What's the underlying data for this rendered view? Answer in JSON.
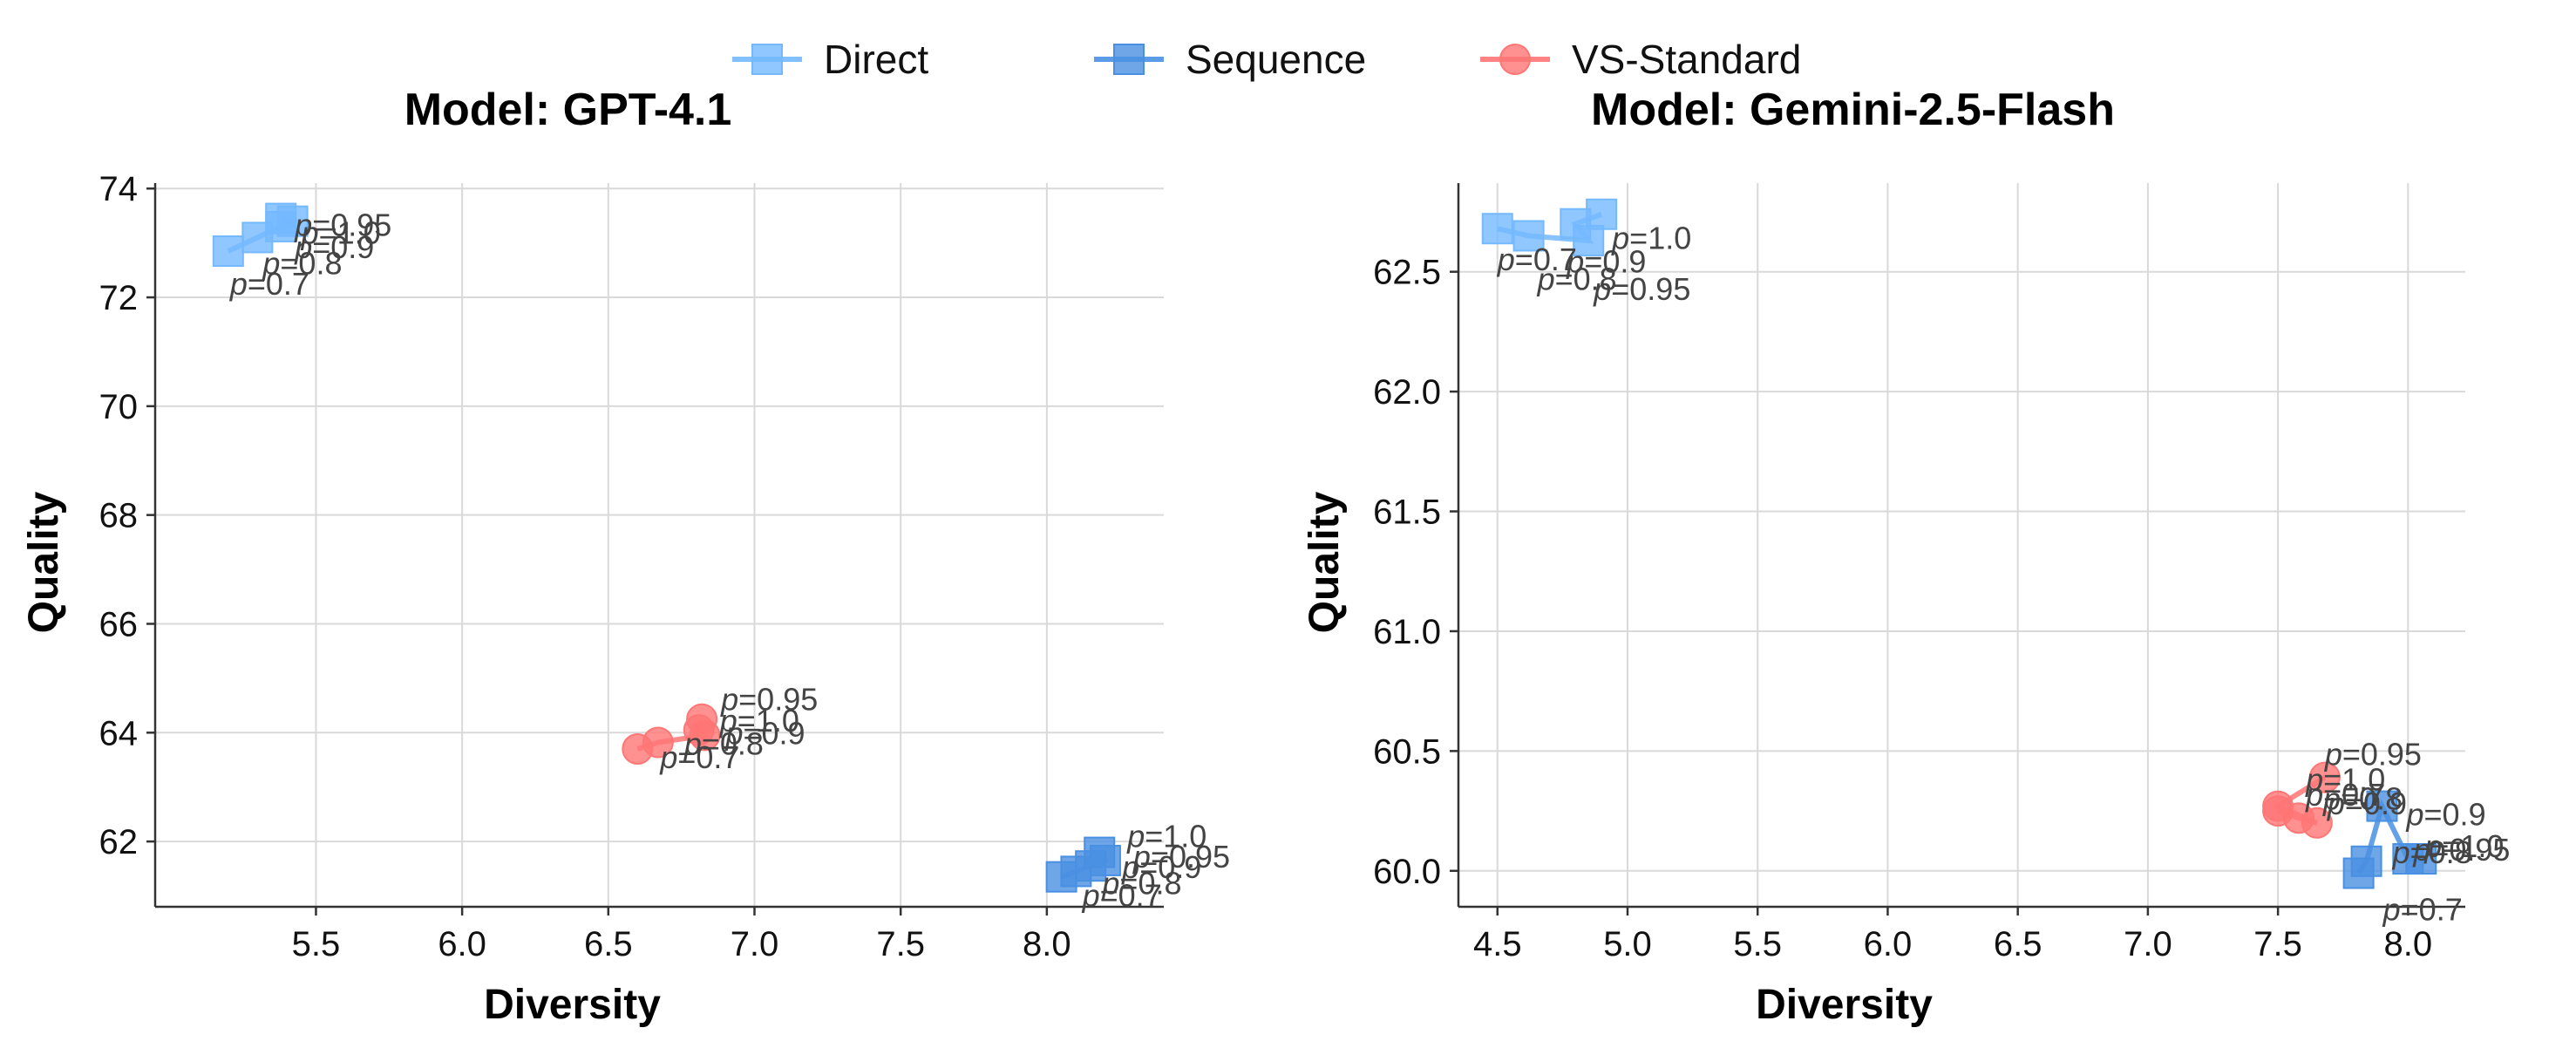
{
  "legend": [
    {
      "label": "Direct",
      "color": "#74b9ff",
      "marker": "square"
    },
    {
      "label": "Sequence",
      "color": "#4a90e2",
      "marker": "square"
    },
    {
      "label": "VS-Standard",
      "color": "#ff7675",
      "marker": "circle"
    }
  ],
  "chart_data": [
    {
      "type": "scatter",
      "title": "Model: GPT-4.1",
      "xlabel": "Diversity",
      "ylabel": "Quality",
      "xlim": [
        4.95,
        8.4
      ],
      "ylim": [
        60.8,
        74.1
      ],
      "xticks": [
        "5.5",
        "6.0",
        "6.5",
        "7.0",
        "7.5",
        "8.0"
      ],
      "yticks": [
        "62",
        "64",
        "66",
        "68",
        "70",
        "72",
        "74"
      ],
      "grid": true,
      "series": [
        {
          "name": "Direct",
          "color": "#74b9ff",
          "marker": "square",
          "points": [
            {
              "x": 5.2,
              "y": 72.85,
              "label": "p=0.7"
            },
            {
              "x": 5.3,
              "y": 73.1,
              "label": "p=0.8"
            },
            {
              "x": 5.38,
              "y": 73.3,
              "label": "p=0.9"
            },
            {
              "x": 5.42,
              "y": 73.4,
              "label": "p=1.0"
            },
            {
              "x": 5.38,
              "y": 73.45,
              "label": "p=0.95"
            }
          ]
        },
        {
          "name": "Sequence",
          "color": "#4a90e2",
          "marker": "square",
          "points": [
            {
              "x": 8.05,
              "y": 61.35,
              "label": "p=0.7"
            },
            {
              "x": 8.1,
              "y": 61.45,
              "label": "p=0.8"
            },
            {
              "x": 8.15,
              "y": 61.55,
              "label": "p=0.9"
            },
            {
              "x": 8.2,
              "y": 61.65,
              "label": "p=0.95"
            },
            {
              "x": 8.18,
              "y": 61.8,
              "label": "p=1.0"
            }
          ]
        },
        {
          "name": "VS-Standard",
          "color": "#ff7675",
          "marker": "circle",
          "points": [
            {
              "x": 6.6,
              "y": 63.7,
              "label": "p=0.7"
            },
            {
              "x": 6.67,
              "y": 63.82,
              "label": "p=0.8"
            },
            {
              "x": 6.83,
              "y": 63.95,
              "label": "p=0.9"
            },
            {
              "x": 6.81,
              "y": 64.05,
              "label": "p=1.0"
            },
            {
              "x": 6.82,
              "y": 64.25,
              "label": "p=0.95"
            }
          ]
        }
      ]
    },
    {
      "type": "scatter",
      "title": "Model: Gemini-2.5-Flash",
      "xlabel": "Diversity",
      "ylabel": "Quality",
      "xlim": [
        4.35,
        8.22
      ],
      "ylim": [
        59.85,
        62.87
      ],
      "xticks": [
        "4.5",
        "5.0",
        "5.5",
        "6.0",
        "6.5",
        "7.0",
        "7.5",
        "8.0"
      ],
      "yticks": [
        "60.0",
        "60.5",
        "61.0",
        "61.5",
        "62.0",
        "62.5"
      ],
      "grid": true,
      "series": [
        {
          "name": "Direct",
          "color": "#74b9ff",
          "marker": "square",
          "points": [
            {
              "x": 4.5,
              "y": 62.68,
              "label": "p=0.7"
            },
            {
              "x": 4.62,
              "y": 62.65,
              "label": "p=0.8"
            },
            {
              "x": 4.85,
              "y": 62.63,
              "label": "p=0.95"
            },
            {
              "x": 4.8,
              "y": 62.7,
              "label": "p=0.9"
            },
            {
              "x": 4.9,
              "y": 62.74,
              "label": "p=1.0"
            }
          ]
        },
        {
          "name": "Sequence",
          "color": "#4a90e2",
          "marker": "square",
          "points": [
            {
              "x": 7.81,
              "y": 59.99,
              "label": "p=0.7"
            },
            {
              "x": 7.84,
              "y": 60.04,
              "label": "p=0.8"
            },
            {
              "x": 7.9,
              "y": 60.27,
              "label": "p=0.9"
            },
            {
              "x": 8.0,
              "y": 60.05,
              "label": "p=0.95"
            },
            {
              "x": 8.05,
              "y": 60.05,
              "label": "p=1.0"
            }
          ]
        },
        {
          "name": "VS-Standard",
          "color": "#ff7675",
          "marker": "circle",
          "points": [
            {
              "x": 7.5,
              "y": 60.25,
              "label": "p=0.7"
            },
            {
              "x": 7.58,
              "y": 60.22,
              "label": "p=0.8"
            },
            {
              "x": 7.65,
              "y": 60.2,
              "label": "p=0.9"
            },
            {
              "x": 7.5,
              "y": 60.27,
              "label": "p=1.0"
            },
            {
              "x": 7.68,
              "y": 60.39,
              "label": "p=0.95"
            }
          ]
        }
      ]
    }
  ]
}
